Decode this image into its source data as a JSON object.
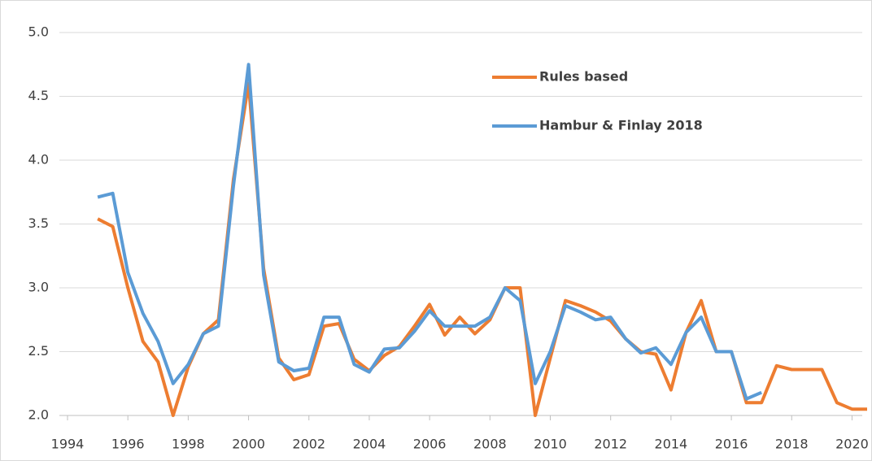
{
  "chart_data": {
    "type": "line",
    "x": [
      1995,
      1995.5,
      1996,
      1996.5,
      1997,
      1997.5,
      1998,
      1998.5,
      1999,
      1999.5,
      2000,
      2000.5,
      2001,
      2001.5,
      2002,
      2002.5,
      2003,
      2003.5,
      2004,
      2004.5,
      2005,
      2005.5,
      2006,
      2006.5,
      2007,
      2007.5,
      2008,
      2008.5,
      2009,
      2009.5,
      2010,
      2010.5,
      2011,
      2011.5,
      2012,
      2012.5,
      2013,
      2013.5,
      2014,
      2014.5,
      2015,
      2015.5,
      2016,
      2016.5,
      2017,
      2017.5,
      2018,
      2018.5,
      2019,
      2019.5,
      2020,
      2020.5
    ],
    "series": [
      {
        "name": "Rules based",
        "color": "#ed7d31",
        "values": [
          3.54,
          3.48,
          3.0,
          2.58,
          2.42,
          2.0,
          2.38,
          2.64,
          2.75,
          3.85,
          4.6,
          3.15,
          2.45,
          2.28,
          2.32,
          2.7,
          2.72,
          2.44,
          2.35,
          2.47,
          2.54,
          2.7,
          2.87,
          2.63,
          2.77,
          2.64,
          2.75,
          3.0,
          3.0,
          2.0,
          2.45,
          2.9,
          2.86,
          2.81,
          2.74,
          2.6,
          2.5,
          2.48,
          2.2,
          2.65,
          2.9,
          2.5,
          2.5,
          2.1,
          2.1,
          2.39,
          2.36,
          2.36,
          2.36,
          2.1,
          2.05,
          2.05
        ]
      },
      {
        "name": "Hambur & Finlay 2018",
        "color": "#5b9bd5",
        "values": [
          3.71,
          3.74,
          3.12,
          2.8,
          2.58,
          2.25,
          2.4,
          2.64,
          2.7,
          3.8,
          4.75,
          3.1,
          2.42,
          2.35,
          2.37,
          2.77,
          2.77,
          2.4,
          2.34,
          2.52,
          2.53,
          2.66,
          2.82,
          2.7,
          2.7,
          2.7,
          2.77,
          3.0,
          2.9,
          2.25,
          2.5,
          2.86,
          2.81,
          2.75,
          2.77,
          2.6,
          2.49,
          2.53,
          2.4,
          2.65,
          2.77,
          2.5,
          2.5,
          2.13,
          2.18,
          null,
          null,
          null,
          null,
          null,
          null,
          null
        ]
      }
    ],
    "xlim": [
      1994,
      2020.5
    ],
    "xticks": [
      1994,
      1996,
      1998,
      2000,
      2002,
      2004,
      2006,
      2008,
      2010,
      2012,
      2014,
      2016,
      2018,
      2020
    ],
    "ylim": [
      2.0,
      5.0
    ],
    "yticks": [
      {
        "value": 2.0,
        "label": "2.0"
      },
      {
        "value": 2.5,
        "label": "2.5"
      },
      {
        "value": 3.0,
        "label": "3.0"
      },
      {
        "value": 3.5,
        "label": "3.5"
      },
      {
        "value": 4.0,
        "label": "4.0"
      },
      {
        "value": 4.5,
        "label": "4.5"
      },
      {
        "value": 5.0,
        "label": "5.0"
      }
    ],
    "grid": true,
    "legend": "upper-right"
  }
}
